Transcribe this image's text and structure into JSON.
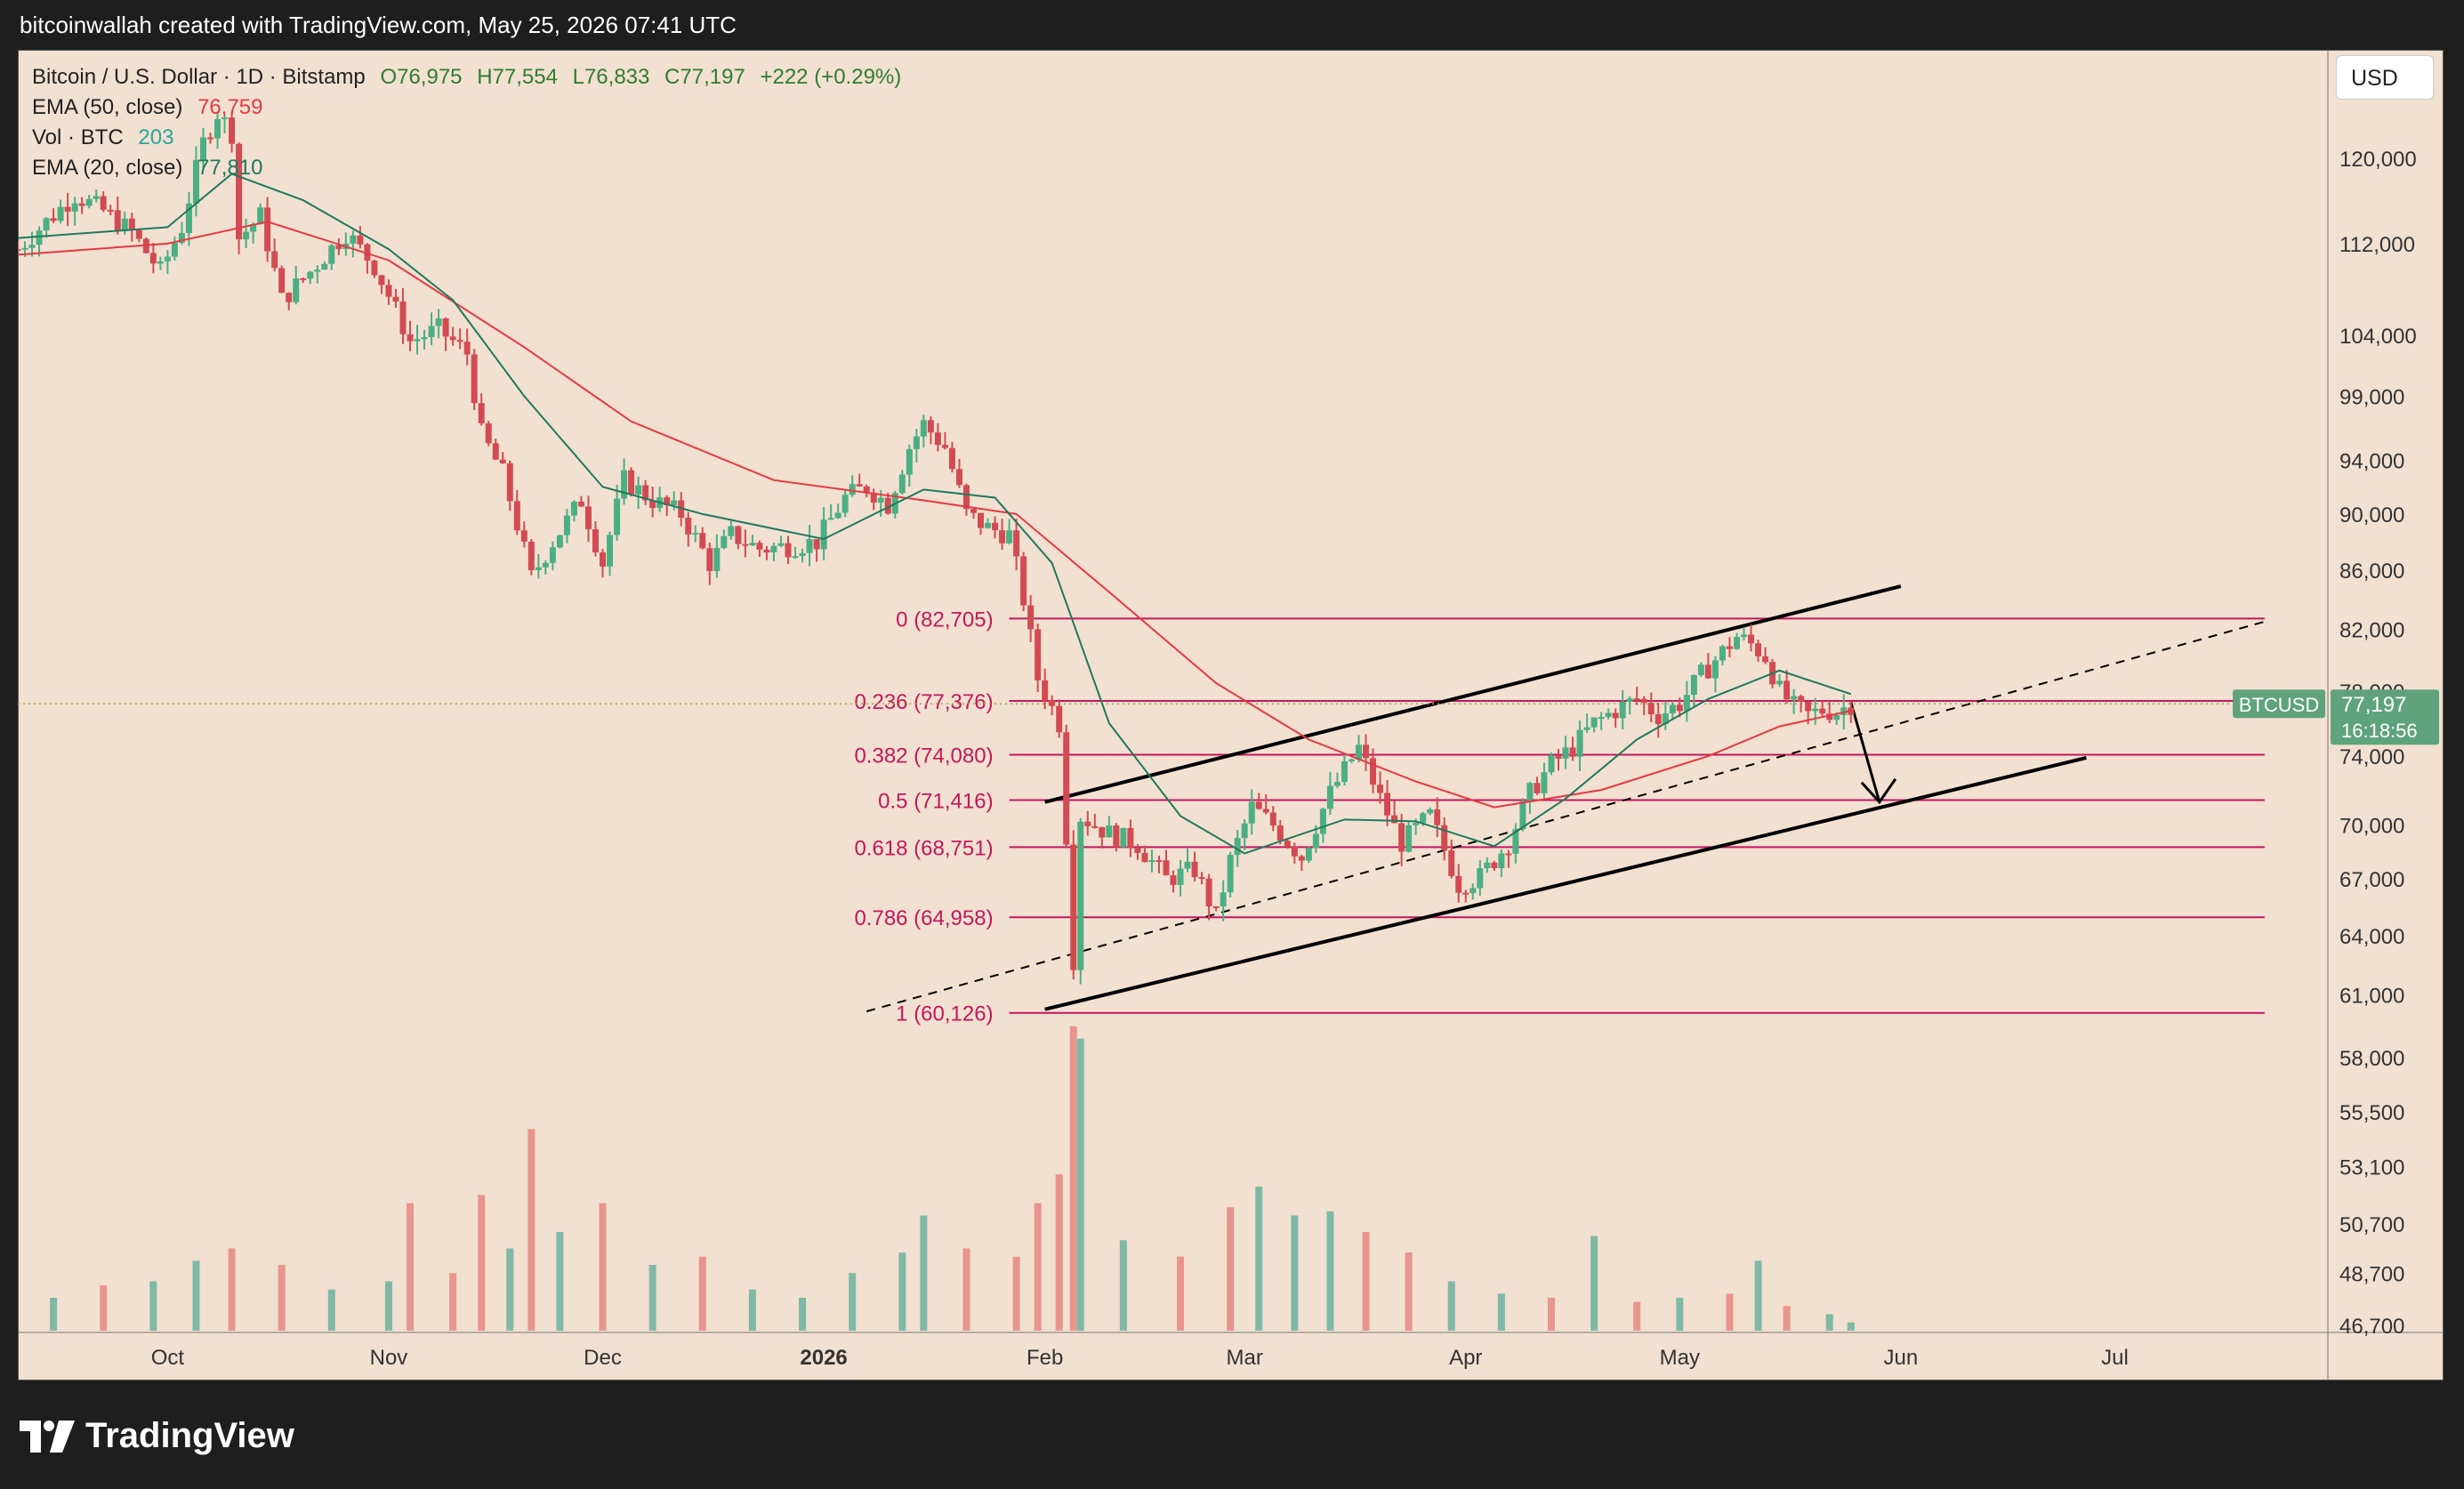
{
  "header": {
    "attribution": "bitcoinwallah created with TradingView.com, May 25, 2026 07:41 UTC"
  },
  "footer": {
    "brand": "TradingView",
    "brand_icon": "tradingview-logo-icon"
  },
  "toolbar": {
    "currency_label": "USD"
  },
  "legend": {
    "symbol": "Bitcoin / U.S. Dollar · 1D · Bitstamp",
    "open": "O76,975",
    "high": "H77,554",
    "low": "L76,833",
    "close": "C77,197",
    "change": "+222 (+0.29%)",
    "ema50_label": "EMA (50, close)",
    "ema50_value": "76,759",
    "vol_label": "Vol · BTC",
    "vol_value": "203",
    "ema20_label": "EMA (20, close)",
    "ema20_value": "77,810"
  },
  "price_tag": {
    "symbol": "BTCUSD",
    "price": "77,197",
    "countdown": "16:18:56"
  },
  "colors": {
    "background": "#f2e0d0",
    "up": "#26a69a",
    "down": "#ef5350",
    "up_candle": "#4caf82",
    "down_candle": "#d24b52",
    "ema50": "#e53945",
    "ema20": "#1f7a5c",
    "fib": "#c2185b",
    "vol_up": "#7fb9a6",
    "vol_down": "#e8958e",
    "price_tag": "#5fa37a",
    "annotation": "#000000"
  },
  "chart_data": {
    "type": "candlestick",
    "title": "Bitcoin / U.S. Dollar · 1D · Bitstamp",
    "x_range": [
      "2025-09-10",
      "2026-07-30"
    ],
    "y_scale": "log",
    "y_range": [
      46500,
      131000
    ],
    "x_ticks": [
      {
        "date": "2025-10-01",
        "label": "Oct",
        "bold": false
      },
      {
        "date": "2025-11-01",
        "label": "Nov",
        "bold": false
      },
      {
        "date": "2025-12-01",
        "label": "Dec",
        "bold": false
      },
      {
        "date": "2026-01-01",
        "label": "2026",
        "bold": true
      },
      {
        "date": "2026-02-01",
        "label": "Feb",
        "bold": false
      },
      {
        "date": "2026-03-01",
        "label": "Mar",
        "bold": false
      },
      {
        "date": "2026-04-01",
        "label": "Apr",
        "bold": false
      },
      {
        "date": "2026-05-01",
        "label": "May",
        "bold": false
      },
      {
        "date": "2026-06-01",
        "label": "Jun",
        "bold": false
      },
      {
        "date": "2026-07-01",
        "label": "Jul",
        "bold": false
      }
    ],
    "y_ticks": [
      {
        "value": 120000,
        "label": "120,000"
      },
      {
        "value": 112000,
        "label": "112,000"
      },
      {
        "value": 104000,
        "label": "104,000"
      },
      {
        "value": 99000,
        "label": "99,000"
      },
      {
        "value": 94000,
        "label": "94,000"
      },
      {
        "value": 90000,
        "label": "90,000"
      },
      {
        "value": 86000,
        "label": "86,000"
      },
      {
        "value": 82000,
        "label": "82,000"
      },
      {
        "value": 78000,
        "label": "78,000"
      },
      {
        "value": 74000,
        "label": "74,000"
      },
      {
        "value": 70000,
        "label": "70,000"
      },
      {
        "value": 67000,
        "label": "67,000"
      },
      {
        "value": 64000,
        "label": "64,000"
      },
      {
        "value": 61000,
        "label": "61,000"
      },
      {
        "value": 58000,
        "label": "58,000"
      },
      {
        "value": 55500,
        "label": "55,500"
      },
      {
        "value": 53100,
        "label": "53,100"
      },
      {
        "value": 50700,
        "label": "50,700"
      },
      {
        "value": 48700,
        "label": "48,700"
      },
      {
        "value": 46700,
        "label": "46,700"
      }
    ],
    "close_path": [
      [
        "2025-09-10",
        111500
      ],
      [
        "2025-09-14",
        114000
      ],
      [
        "2025-09-18",
        116500
      ],
      [
        "2025-09-22",
        115000
      ],
      [
        "2025-09-26",
        113000
      ],
      [
        "2025-09-30",
        109500
      ],
      [
        "2025-10-03",
        113500
      ],
      [
        "2025-10-06",
        121500
      ],
      [
        "2025-10-08",
        124500
      ],
      [
        "2025-10-10",
        122500
      ],
      [
        "2025-10-11",
        112500
      ],
      [
        "2025-10-14",
        114500
      ],
      [
        "2025-10-17",
        107000
      ],
      [
        "2025-10-21",
        109500
      ],
      [
        "2025-10-26",
        113000
      ],
      [
        "2025-10-30",
        110000
      ],
      [
        "2025-11-04",
        103500
      ],
      [
        "2025-11-08",
        104500
      ],
      [
        "2025-11-12",
        102500
      ],
      [
        "2025-11-14",
        96000
      ],
      [
        "2025-11-17",
        93000
      ],
      [
        "2025-11-21",
        85500
      ],
      [
        "2025-11-24",
        88000
      ],
      [
        "2025-11-28",
        91000
      ],
      [
        "2025-12-01",
        86500
      ],
      [
        "2025-12-04",
        92500
      ],
      [
        "2025-12-08",
        91000
      ],
      [
        "2025-12-12",
        90000
      ],
      [
        "2025-12-16",
        86500
      ],
      [
        "2025-12-19",
        88500
      ],
      [
        "2025-12-23",
        87500
      ],
      [
        "2025-12-27",
        87700
      ],
      [
        "2025-12-31",
        88000
      ],
      [
        "2026-01-04",
        91200
      ],
      [
        "2026-01-07",
        92000
      ],
      [
        "2026-01-10",
        90700
      ],
      [
        "2026-01-13",
        95000
      ],
      [
        "2026-01-15",
        96800
      ],
      [
        "2026-01-18",
        95000
      ],
      [
        "2026-01-21",
        90000
      ],
      [
        "2026-01-24",
        89000
      ],
      [
        "2026-01-27",
        88500
      ],
      [
        "2026-01-29",
        84000
      ],
      [
        "2026-01-31",
        78800
      ],
      [
        "2026-02-03",
        76000
      ],
      [
        "2026-02-05",
        62800
      ],
      [
        "2026-02-06",
        70500
      ],
      [
        "2026-02-10",
        69500
      ],
      [
        "2026-02-14",
        68900
      ],
      [
        "2026-02-18",
        67000
      ],
      [
        "2026-02-22",
        67500
      ],
      [
        "2026-02-25",
        65000
      ],
      [
        "2026-02-27",
        68000
      ],
      [
        "2026-03-02",
        71000
      ],
      [
        "2026-03-05",
        70000
      ],
      [
        "2026-03-09",
        68200
      ],
      [
        "2026-03-13",
        71800
      ],
      [
        "2026-03-17",
        74500
      ],
      [
        "2026-03-20",
        71500
      ],
      [
        "2026-03-23",
        69000
      ],
      [
        "2026-03-27",
        70500
      ],
      [
        "2026-03-31",
        66700
      ],
      [
        "2026-04-03",
        67100
      ],
      [
        "2026-04-07",
        69000
      ],
      [
        "2026-04-10",
        71800
      ],
      [
        "2026-04-13",
        73500
      ],
      [
        "2026-04-16",
        74500
      ],
      [
        "2026-04-19",
        76000
      ],
      [
        "2026-04-22",
        76800
      ],
      [
        "2026-04-25",
        77500
      ],
      [
        "2026-04-28",
        76500
      ],
      [
        "2026-05-01",
        77200
      ],
      [
        "2026-05-04",
        79000
      ],
      [
        "2026-05-07",
        80500
      ],
      [
        "2026-05-09",
        81500
      ],
      [
        "2026-05-11",
        81000
      ],
      [
        "2026-05-13",
        80200
      ],
      [
        "2026-05-15",
        78000
      ],
      [
        "2026-05-17",
        77000
      ],
      [
        "2026-05-19",
        76500
      ],
      [
        "2026-05-21",
        76800
      ],
      [
        "2026-05-23",
        76700
      ],
      [
        "2026-05-25",
        77197
      ]
    ],
    "ema20_path": [
      [
        "2025-09-10",
        112500
      ],
      [
        "2025-10-01",
        113500
      ],
      [
        "2025-10-10",
        118500
      ],
      [
        "2025-10-20",
        116000
      ],
      [
        "2025-11-01",
        111500
      ],
      [
        "2025-11-10",
        107000
      ],
      [
        "2025-11-20",
        99000
      ],
      [
        "2025-12-01",
        92000
      ],
      [
        "2025-12-15",
        90000
      ],
      [
        "2026-01-01",
        88200
      ],
      [
        "2026-01-15",
        91800
      ],
      [
        "2026-01-25",
        91200
      ],
      [
        "2026-02-02",
        86500
      ],
      [
        "2026-02-10",
        76000
      ],
      [
        "2026-02-20",
        70500
      ],
      [
        "2026-03-01",
        68400
      ],
      [
        "2026-03-15",
        70300
      ],
      [
        "2026-03-25",
        70200
      ],
      [
        "2026-04-05",
        68800
      ],
      [
        "2026-04-15",
        71500
      ],
      [
        "2026-04-25",
        75000
      ],
      [
        "2026-05-05",
        77500
      ],
      [
        "2026-05-15",
        79300
      ],
      [
        "2026-05-25",
        77810
      ]
    ],
    "ema50_path": [
      [
        "2025-09-10",
        111000
      ],
      [
        "2025-10-01",
        112000
      ],
      [
        "2025-10-15",
        114000
      ],
      [
        "2025-11-01",
        110500
      ],
      [
        "2025-11-20",
        103000
      ],
      [
        "2025-12-05",
        97000
      ],
      [
        "2025-12-25",
        92500
      ],
      [
        "2026-01-15",
        91000
      ],
      [
        "2026-01-28",
        90000
      ],
      [
        "2026-02-10",
        84500
      ],
      [
        "2026-02-25",
        78500
      ],
      [
        "2026-03-10",
        75000
      ],
      [
        "2026-03-25",
        72500
      ],
      [
        "2026-04-05",
        71000
      ],
      [
        "2026-04-20",
        72000
      ],
      [
        "2026-05-05",
        74000
      ],
      [
        "2026-05-15",
        75800
      ],
      [
        "2026-05-25",
        76759
      ]
    ],
    "fib_levels": [
      {
        "ratio": 0,
        "price": 82705,
        "label": "0 (82,705)"
      },
      {
        "ratio": 0.236,
        "price": 77376,
        "label": "0.236 (77,376)"
      },
      {
        "ratio": 0.382,
        "price": 74080,
        "label": "0.382 (74,080)"
      },
      {
        "ratio": 0.5,
        "price": 71416,
        "label": "0.5 (71,416)"
      },
      {
        "ratio": 0.618,
        "price": 68751,
        "label": "0.618 (68,751)"
      },
      {
        "ratio": 0.786,
        "price": 64958,
        "label": "0.786 (64,958)"
      },
      {
        "ratio": 1,
        "price": 60126,
        "label": "1 (60,126)"
      }
    ],
    "fib_x_range": [
      "2026-01-27",
      "2026-07-22"
    ],
    "channel_upper": [
      [
        "2026-02-01",
        71300
      ],
      [
        "2026-06-01",
        84900
      ]
    ],
    "channel_lower": [
      [
        "2026-02-01",
        60300
      ],
      [
        "2026-06-27",
        73900
      ]
    ],
    "dashed_midline": [
      [
        "2026-01-07",
        60200
      ],
      [
        "2026-07-22",
        82500
      ]
    ],
    "projection_arrow": [
      [
        "2026-05-25",
        77300
      ],
      [
        "2026-05-29",
        71300
      ]
    ],
    "current_price": 77197,
    "volume": {
      "y_max": 400,
      "bars": [
        [
          "2025-09-15",
          40,
          "up"
        ],
        [
          "2025-09-22",
          55,
          "down"
        ],
        [
          "2025-09-29",
          60,
          "up"
        ],
        [
          "2025-10-05",
          85,
          "up"
        ],
        [
          "2025-10-10",
          100,
          "down"
        ],
        [
          "2025-10-17",
          80,
          "down"
        ],
        [
          "2025-10-24",
          50,
          "up"
        ],
        [
          "2025-11-01",
          60,
          "up"
        ],
        [
          "2025-11-04",
          155,
          "down"
        ],
        [
          "2025-11-10",
          70,
          "down"
        ],
        [
          "2025-11-14",
          165,
          "down"
        ],
        [
          "2025-11-18",
          100,
          "up"
        ],
        [
          "2025-11-21",
          245,
          "down"
        ],
        [
          "2025-11-25",
          120,
          "up"
        ],
        [
          "2025-12-01",
          155,
          "down"
        ],
        [
          "2025-12-08",
          80,
          "up"
        ],
        [
          "2025-12-15",
          90,
          "down"
        ],
        [
          "2025-12-22",
          50,
          "up"
        ],
        [
          "2025-12-29",
          40,
          "up"
        ],
        [
          "2026-01-05",
          70,
          "up"
        ],
        [
          "2026-01-12",
          95,
          "up"
        ],
        [
          "2026-01-15",
          140,
          "up"
        ],
        [
          "2026-01-21",
          100,
          "down"
        ],
        [
          "2026-01-28",
          90,
          "down"
        ],
        [
          "2026-01-31",
          155,
          "down"
        ],
        [
          "2026-02-03",
          190,
          "down"
        ],
        [
          "2026-02-05",
          370,
          "down"
        ],
        [
          "2026-02-06",
          355,
          "up"
        ],
        [
          "2026-02-12",
          110,
          "up"
        ],
        [
          "2026-02-20",
          90,
          "down"
        ],
        [
          "2026-02-27",
          150,
          "down"
        ],
        [
          "2026-03-03",
          175,
          "up"
        ],
        [
          "2026-03-08",
          140,
          "up"
        ],
        [
          "2026-03-13",
          145,
          "up"
        ],
        [
          "2026-03-18",
          120,
          "down"
        ],
        [
          "2026-03-24",
          95,
          "down"
        ],
        [
          "2026-03-30",
          60,
          "up"
        ],
        [
          "2026-04-06",
          45,
          "up"
        ],
        [
          "2026-04-13",
          40,
          "down"
        ],
        [
          "2026-04-19",
          115,
          "up"
        ],
        [
          "2026-04-25",
          35,
          "down"
        ],
        [
          "2026-05-01",
          40,
          "up"
        ],
        [
          "2026-05-08",
          45,
          "down"
        ],
        [
          "2026-05-12",
          85,
          "up"
        ],
        [
          "2026-05-16",
          30,
          "down"
        ],
        [
          "2026-05-22",
          20,
          "up"
        ],
        [
          "2026-05-25",
          10,
          "up"
        ]
      ]
    }
  }
}
